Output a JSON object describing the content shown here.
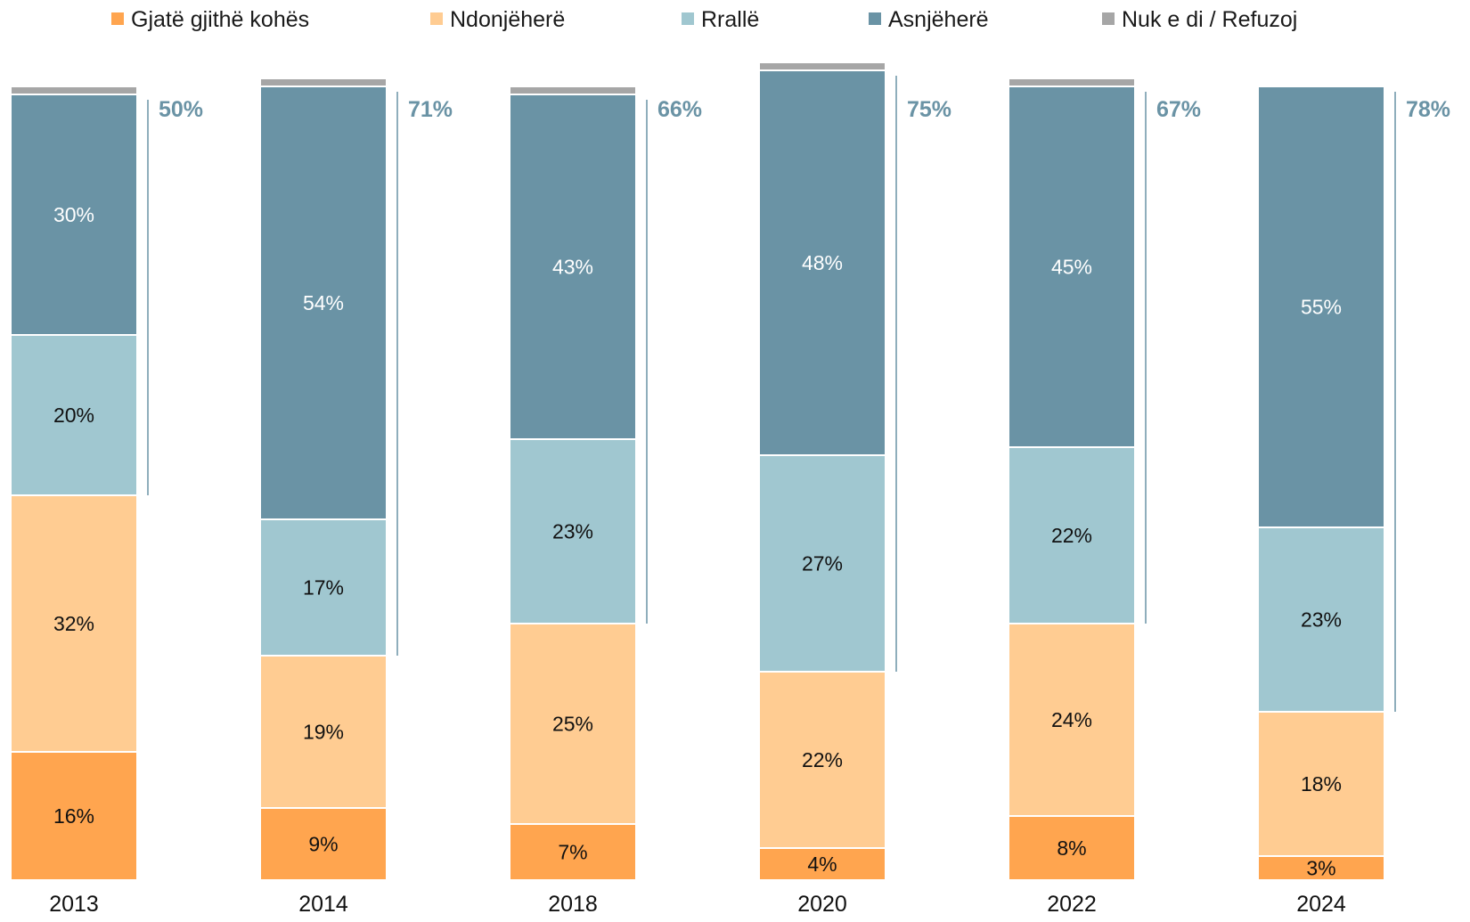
{
  "chart_data": {
    "type": "bar",
    "stacked": true,
    "title": "",
    "xlabel": "",
    "ylabel": "",
    "ylim": [
      0,
      100
    ],
    "legend_position": "top",
    "grid": false,
    "categories": [
      "2013",
      "2014",
      "2018",
      "2020",
      "2022",
      "2024"
    ],
    "series": [
      {
        "name": "Gjatë gjithë kohës",
        "color": "#FFA54F",
        "label_color": "#111111",
        "values": [
          16,
          9,
          7,
          4,
          8,
          3
        ],
        "labels": [
          "16%",
          "9%",
          "7%",
          "4%",
          "8%",
          "3%"
        ]
      },
      {
        "name": "Ndonjëherë",
        "color": "#FFCC92",
        "label_color": "#111111",
        "values": [
          32,
          19,
          25,
          22,
          24,
          18
        ],
        "labels": [
          "32%",
          "19%",
          "25%",
          "22%",
          "24%",
          "18%"
        ]
      },
      {
        "name": "Rrallë",
        "color": "#A0C7D0",
        "label_color": "#111111",
        "values": [
          20,
          17,
          23,
          27,
          22,
          23
        ],
        "labels": [
          "20%",
          "17%",
          "23%",
          "27%",
          "22%",
          "23%"
        ]
      },
      {
        "name": "Asnjëherë",
        "color": "#6A93A5",
        "label_color": "#ffffff",
        "values": [
          30,
          54,
          43,
          48,
          45,
          55
        ],
        "labels": [
          "30%",
          "54%",
          "43%",
          "48%",
          "45%",
          "55%"
        ]
      },
      {
        "name": "Nuk e di / Refuzoj",
        "color": "#A6A6A6",
        "label_color": "#111111",
        "values": [
          1,
          1,
          1,
          1,
          1,
          0
        ],
        "labels": [
          "",
          "",
          "",
          "",
          "",
          ""
        ]
      }
    ],
    "totals": {
      "color": "#6A93A5",
      "values": [
        50,
        71,
        66,
        75,
        67,
        78
      ],
      "labels": [
        "50%",
        "71%",
        "66%",
        "75%",
        "67%",
        "78%"
      ]
    }
  }
}
